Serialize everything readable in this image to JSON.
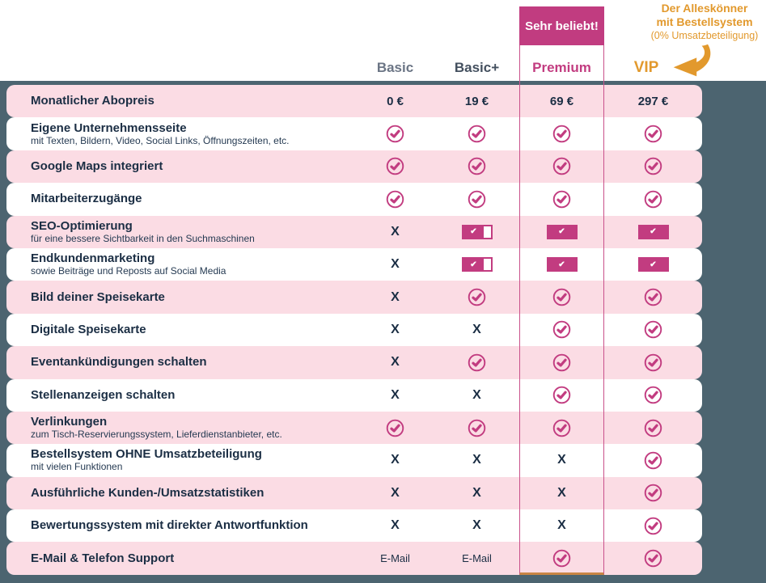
{
  "colors": {
    "accent_magenta": "#c23c80",
    "row_pink": "#fbdce4",
    "row_white": "#ffffff",
    "background_slate": "#4c6470",
    "text_navy": "#1b2e44",
    "annotation_orange": "#e2992d",
    "header_basic_gray": "#6b7585",
    "header_basicplus_gray": "#44505f"
  },
  "badge": {
    "text": "Sehr beliebt!"
  },
  "annotation": {
    "line1": "Der Alleskönner",
    "line2": "mit Bestellsystem",
    "line3": "(0% Umsatzbeteiligung)"
  },
  "plans": {
    "basic": "Basic",
    "basic_plus": "Basic+",
    "premium": "Premium",
    "vip": "VIP"
  },
  "icons": {
    "check_glyph": "✔",
    "x_glyph": "X",
    "check_circle": "circled-checkmark",
    "arrow": "curved-arrow-pointing-left"
  },
  "rows": [
    {
      "label": "Monatlicher Abopreis",
      "sublabel": "",
      "values": [
        {
          "type": "price",
          "text": "0 €"
        },
        {
          "type": "price",
          "text": "19 €"
        },
        {
          "type": "price",
          "text": "69 €"
        },
        {
          "type": "price",
          "text": "297 €"
        }
      ]
    },
    {
      "label": "Eigene Unternehmensseite",
      "sublabel": "mit Texten, Bildern, Video, Social Links, Öffnungszeiten, etc.",
      "values": [
        {
          "type": "check"
        },
        {
          "type": "check"
        },
        {
          "type": "check"
        },
        {
          "type": "check"
        }
      ]
    },
    {
      "label": "Google Maps integriert",
      "sublabel": "",
      "values": [
        {
          "type": "check"
        },
        {
          "type": "check"
        },
        {
          "type": "check"
        },
        {
          "type": "check"
        }
      ]
    },
    {
      "label": "Mitarbeiterzugänge",
      "sublabel": "",
      "values": [
        {
          "type": "check"
        },
        {
          "type": "check"
        },
        {
          "type": "check"
        },
        {
          "type": "check"
        }
      ]
    },
    {
      "label": "SEO-Optimierung",
      "sublabel": "für eine bessere Sichtbarkeit in den Suchmaschinen",
      "values": [
        {
          "type": "x"
        },
        {
          "type": "partial"
        },
        {
          "type": "badge"
        },
        {
          "type": "badge"
        }
      ]
    },
    {
      "label": "Endkundenmarketing",
      "sublabel": "sowie Beiträge und Reposts auf Social Media",
      "values": [
        {
          "type": "x"
        },
        {
          "type": "partial"
        },
        {
          "type": "badge"
        },
        {
          "type": "badge"
        }
      ]
    },
    {
      "label": "Bild deiner Speisekarte",
      "sublabel": "",
      "values": [
        {
          "type": "x"
        },
        {
          "type": "check"
        },
        {
          "type": "check"
        },
        {
          "type": "check"
        }
      ]
    },
    {
      "label": "Digitale Speisekarte",
      "sublabel": "",
      "values": [
        {
          "type": "x"
        },
        {
          "type": "x"
        },
        {
          "type": "check"
        },
        {
          "type": "check"
        }
      ]
    },
    {
      "label": "Eventankündigungen schalten",
      "sublabel": "",
      "values": [
        {
          "type": "x"
        },
        {
          "type": "check"
        },
        {
          "type": "check"
        },
        {
          "type": "check"
        }
      ]
    },
    {
      "label": "Stellenanzeigen schalten",
      "sublabel": "",
      "values": [
        {
          "type": "x"
        },
        {
          "type": "x"
        },
        {
          "type": "check"
        },
        {
          "type": "check"
        }
      ]
    },
    {
      "label": "Verlinkungen",
      "sublabel": "zum Tisch-Reservierungssystem, Lieferdienstanbieter, etc.",
      "values": [
        {
          "type": "check"
        },
        {
          "type": "check"
        },
        {
          "type": "check"
        },
        {
          "type": "check"
        }
      ]
    },
    {
      "label": "Bestellsystem OHNE Umsatzbeteiligung",
      "sublabel": "mit vielen Funktionen",
      "values": [
        {
          "type": "x"
        },
        {
          "type": "x"
        },
        {
          "type": "x"
        },
        {
          "type": "check"
        }
      ]
    },
    {
      "label": "Ausführliche Kunden-/Umsatzstatistiken",
      "sublabel": "",
      "values": [
        {
          "type": "x"
        },
        {
          "type": "x"
        },
        {
          "type": "x"
        },
        {
          "type": "check"
        }
      ]
    },
    {
      "label": "Bewertungssystem mit direkter Antwortfunktion",
      "sublabel": "",
      "values": [
        {
          "type": "x"
        },
        {
          "type": "x"
        },
        {
          "type": "x"
        },
        {
          "type": "check"
        }
      ]
    },
    {
      "label": "E-Mail & Telefon Support",
      "sublabel": "",
      "values": [
        {
          "type": "text",
          "text": "E-Mail"
        },
        {
          "type": "text",
          "text": "E-Mail"
        },
        {
          "type": "check"
        },
        {
          "type": "check"
        }
      ]
    }
  ]
}
